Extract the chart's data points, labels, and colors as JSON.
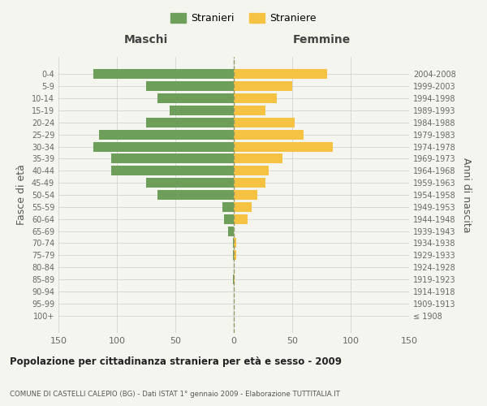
{
  "age_groups": [
    "100+",
    "95-99",
    "90-94",
    "85-89",
    "80-84",
    "75-79",
    "70-74",
    "65-69",
    "60-64",
    "55-59",
    "50-54",
    "45-49",
    "40-44",
    "35-39",
    "30-34",
    "25-29",
    "20-24",
    "15-19",
    "10-14",
    "5-9",
    "0-4"
  ],
  "birth_years": [
    "≤ 1908",
    "1909-1913",
    "1914-1918",
    "1919-1923",
    "1924-1928",
    "1929-1933",
    "1934-1938",
    "1939-1943",
    "1944-1948",
    "1949-1953",
    "1954-1958",
    "1959-1963",
    "1964-1968",
    "1969-1973",
    "1974-1978",
    "1979-1983",
    "1984-1988",
    "1989-1993",
    "1994-1998",
    "1999-2003",
    "2004-2008"
  ],
  "males": [
    0,
    0,
    0,
    1,
    0,
    1,
    1,
    5,
    8,
    10,
    65,
    75,
    105,
    105,
    120,
    115,
    75,
    55,
    65,
    75,
    120
  ],
  "females": [
    0,
    0,
    0,
    1,
    0,
    2,
    2,
    0,
    12,
    15,
    20,
    27,
    30,
    42,
    85,
    60,
    52,
    27,
    37,
    50,
    80
  ],
  "male_color": "#6d9e5a",
  "female_color": "#f5c242",
  "background_color": "#f5f5f0",
  "grid_color": "#cccccc",
  "xlim": 150,
  "title": "Popolazione per cittadinanza straniera per età e sesso - 2009",
  "subtitle": "COMUNE DI CASTELLI CALEPIO (BG) - Dati ISTAT 1° gennaio 2009 - Elaborazione TUTTITALIA.IT",
  "ylabel_left": "Fasce di età",
  "ylabel_right": "Anni di nascita",
  "xlabel_left": "Maschi",
  "xlabel_right": "Femmine",
  "legend_stranieri": "Stranieri",
  "legend_straniere": "Straniere",
  "dashed_line_color": "#999966",
  "bar_height": 0.8
}
